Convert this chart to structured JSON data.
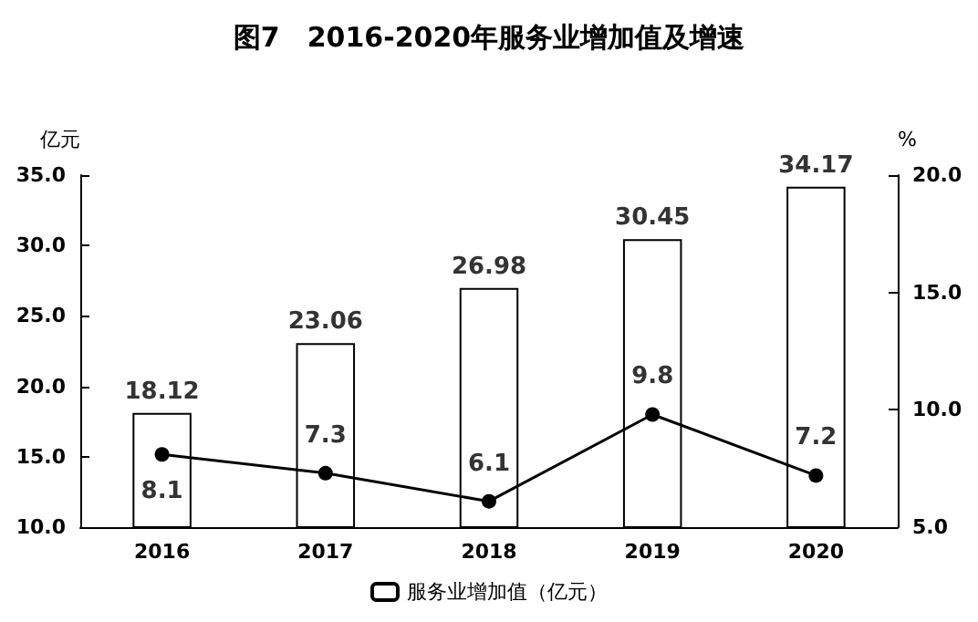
{
  "chart_data": {
    "type": "bar",
    "title": "图7　2016-2020年服务业增加值及增速",
    "ylabel": "亿元",
    "y2label": "%",
    "categories": [
      "2016",
      "2017",
      "2018",
      "2019",
      "2020"
    ],
    "series": [
      {
        "name": "服务业增加值（亿元）",
        "color": "#ffffff",
        "values": [
          18.12,
          23.06,
          26.98,
          30.45,
          34.17
        ]
      },
      {
        "type": "line",
        "axis": "y2",
        "color": "#000000",
        "values": [
          8.1,
          7.3,
          6.1,
          9.8,
          7.2
        ]
      }
    ],
    "ylim": [
      10,
      35
    ],
    "yticks": [
      {
        "value": 10,
        "label": "10.0"
      },
      {
        "value": 15,
        "label": "15.0"
      },
      {
        "value": 20,
        "label": "20.0"
      },
      {
        "value": 25,
        "label": "25.0"
      },
      {
        "value": 30,
        "label": "30.0"
      },
      {
        "value": 35,
        "label": "35.0"
      }
    ],
    "y2lim": [
      5,
      20
    ],
    "y2ticks": [
      {
        "value": 5,
        "label": "5.0"
      },
      {
        "value": 10,
        "label": "10.0"
      },
      {
        "value": 15,
        "label": "15.0"
      },
      {
        "value": 20,
        "label": "20.0"
      }
    ],
    "data_labels": true,
    "marker": "circle",
    "grid": false,
    "legend": "bottom"
  }
}
